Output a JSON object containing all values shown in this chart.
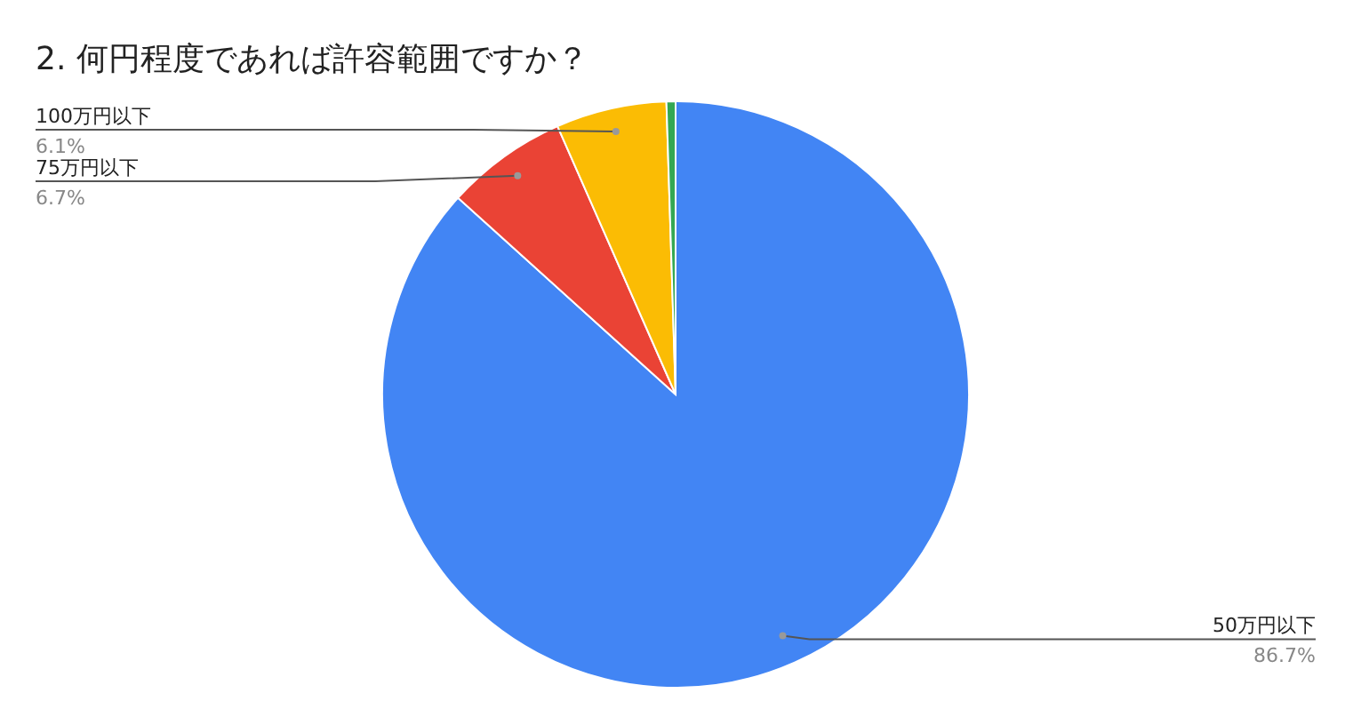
{
  "chart_data": {
    "type": "pie",
    "title": "2. 何円程度であれば許容範囲ですか？",
    "categories": [
      "50万円以下",
      "75万円以下",
      "100万円以下",
      null
    ],
    "values": [
      86.7,
      6.7,
      6.1,
      0.5
    ],
    "colors": [
      "#4285f4",
      "#ea4335",
      "#fbbc04",
      "#34a853"
    ],
    "value_labels": [
      "86.7%",
      "6.7%",
      "6.1%",
      null
    ]
  }
}
